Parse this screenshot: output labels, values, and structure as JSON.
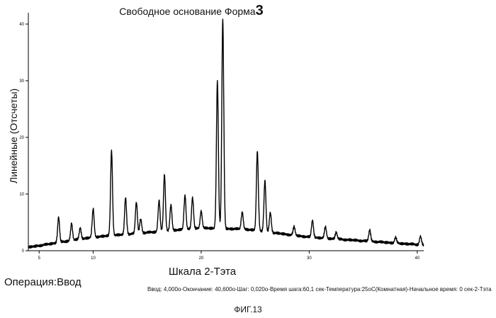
{
  "title_text": "Свободное основание Форма",
  "title_number": "3",
  "caption_operation": "Операция:Ввод",
  "caption_params": "Ввод: 4,000о-Окончание: 40,600о-Шаг: 0,020о-Время шага:60,1   сек-Температура:25оС(Комнатная)-Начальное время: 0 сек-2-Тэта",
  "figure_label": "ФИГ.13",
  "chart_data": {
    "type": "line",
    "xlabel": "Шкала 2-Тэта",
    "ylabel": "Линейные (Отсчеты)",
    "xlim": [
      4,
      40.6
    ],
    "ylim": [
      0,
      42
    ],
    "x_ticks": [
      5,
      10,
      20,
      30,
      40
    ],
    "x_tick_labels": [
      "5",
      "10",
      "20",
      "30",
      "40"
    ],
    "y_ticks": [
      0,
      10,
      20,
      30,
      40
    ],
    "y_tick_labels": [
      "0",
      "10",
      "20",
      "30",
      "40"
    ],
    "baseline": {
      "x": [
        4,
        10,
        20,
        24,
        30,
        40.6
      ],
      "y": [
        0.6,
        2.4,
        4.0,
        3.8,
        2.4,
        1.0
      ]
    },
    "peaks": [
      {
        "x": 6.8,
        "height": 4.5
      },
      {
        "x": 8.0,
        "height": 3.0
      },
      {
        "x": 8.8,
        "height": 2.0
      },
      {
        "x": 10.0,
        "height": 5.0
      },
      {
        "x": 11.7,
        "height": 15.0
      },
      {
        "x": 13.0,
        "height": 6.5
      },
      {
        "x": 14.0,
        "height": 5.5
      },
      {
        "x": 14.4,
        "height": 2.5
      },
      {
        "x": 16.1,
        "height": 5.5
      },
      {
        "x": 16.6,
        "height": 10.0
      },
      {
        "x": 17.2,
        "height": 4.5
      },
      {
        "x": 18.5,
        "height": 6.0
      },
      {
        "x": 19.2,
        "height": 5.5
      },
      {
        "x": 20.0,
        "height": 3.0
      },
      {
        "x": 21.5,
        "height": 26.0
      },
      {
        "x": 22.0,
        "height": 37.0
      },
      {
        "x": 23.8,
        "height": 3.0
      },
      {
        "x": 25.2,
        "height": 14.0
      },
      {
        "x": 25.9,
        "height": 9.0
      },
      {
        "x": 26.4,
        "height": 3.5
      },
      {
        "x": 28.6,
        "height": 1.5
      },
      {
        "x": 30.3,
        "height": 3.0
      },
      {
        "x": 31.5,
        "height": 2.0
      },
      {
        "x": 32.5,
        "height": 1.2
      },
      {
        "x": 35.6,
        "height": 2.0
      },
      {
        "x": 38.0,
        "height": 1.0
      },
      {
        "x": 40.3,
        "height": 1.5
      }
    ]
  }
}
